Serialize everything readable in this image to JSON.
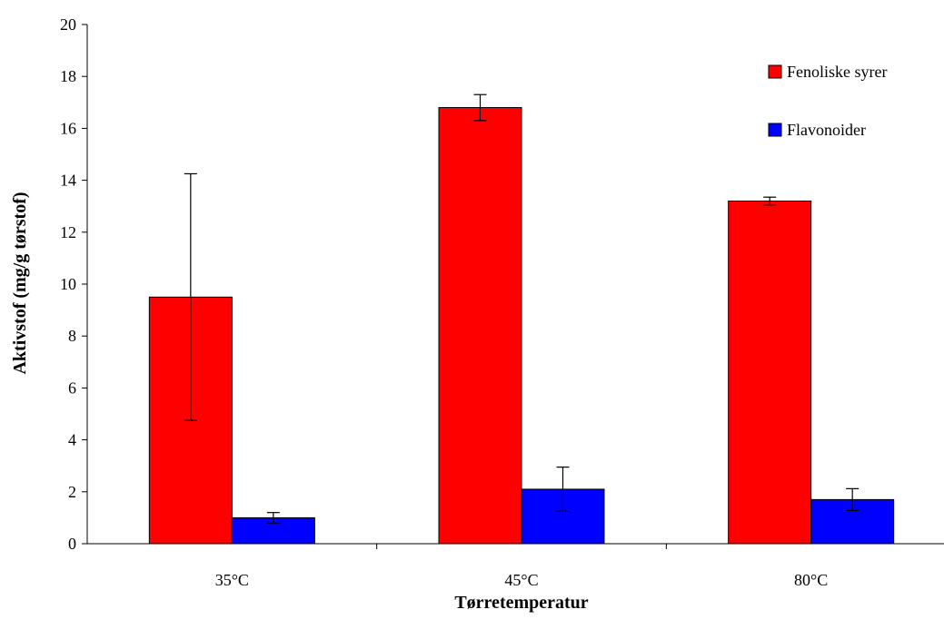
{
  "chart_data": {
    "type": "bar",
    "title": "",
    "xlabel": "Tørretemperatur",
    "ylabel": "Aktivstof (mg/g tørstof)",
    "categories": [
      "35°C",
      "45°C",
      "80°C"
    ],
    "ylim": [
      0,
      20
    ],
    "yticks": [
      0,
      2,
      4,
      6,
      8,
      10,
      12,
      14,
      16,
      18,
      20
    ],
    "grid": false,
    "legend_position": "top-right",
    "series": [
      {
        "name": "Fenoliske syrer",
        "color": "#ff0000",
        "values": [
          9.5,
          16.8,
          13.2
        ],
        "error": [
          4.75,
          0.5,
          0.15
        ]
      },
      {
        "name": "Flavonoider",
        "color": "#0000ff",
        "values": [
          1.0,
          2.1,
          1.7
        ],
        "error": [
          0.2,
          0.85,
          0.42
        ]
      }
    ]
  }
}
